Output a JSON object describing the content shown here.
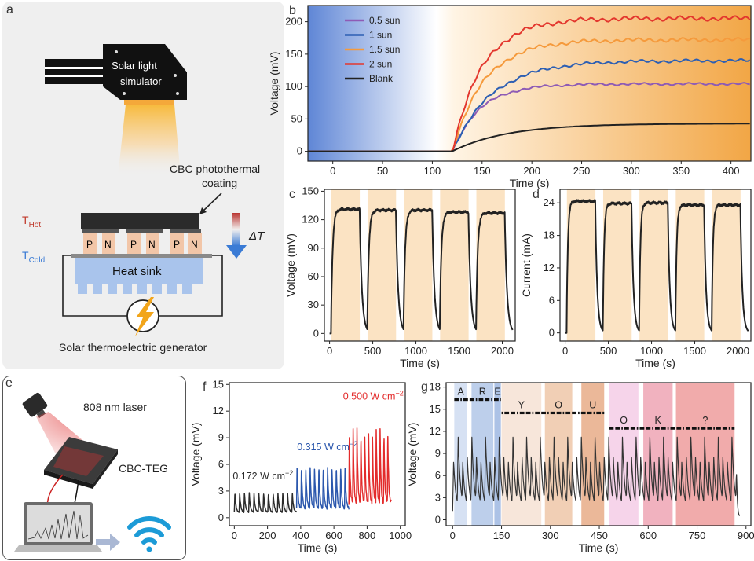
{
  "panel_a": {
    "letter": "a",
    "simulator_label_1": "Solar light",
    "simulator_label_2": "simulator",
    "coating_label_1": "CBC photothermal",
    "coating_label_2": "coating",
    "t_hot": "T",
    "t_hot_sub": "Hot",
    "t_cold": "T",
    "t_cold_sub": "Cold",
    "delta_t": "ΔT",
    "p_label": "P",
    "n_label": "N",
    "heat_sink": "Heat sink",
    "generator_label": "Solar thermoelectric generator",
    "colors": {
      "hot": "#c0392b",
      "cold": "#3a7bd5",
      "coating": "#2b2b2b",
      "sink": "#a9c4ec",
      "leg": "#f2c6a8",
      "bolt": "#f2a51a"
    }
  },
  "panel_e": {
    "letter": "e",
    "laser_label": "808 nm laser",
    "device_label": "CBC-TEG",
    "icons": [
      "laser-head-icon",
      "teg-device-icon",
      "laptop-icon",
      "arrow-right-icon",
      "wifi-icon"
    ],
    "colors": {
      "laser": "#e03a3a",
      "wifi": "#1c9bd7"
    }
  },
  "chart_data": [
    {
      "id": "b",
      "letter": "b",
      "type": "line",
      "title": "",
      "xlabel": "Time (s)",
      "ylabel": "Voltage (mV)",
      "xlim": [
        -25,
        420
      ],
      "ylim": [
        -15,
        225
      ],
      "xticks": [
        0,
        50,
        100,
        150,
        200,
        250,
        300,
        350,
        400
      ],
      "yticks": [
        0,
        50,
        100,
        150,
        200
      ],
      "light_on_at": 120,
      "legend_position": "top-left",
      "series": [
        {
          "name": "0.5 sun",
          "color": "#8e5bb5",
          "plateau": 104,
          "tau": 28
        },
        {
          "name": "1 sun",
          "color": "#2d5fb3",
          "plateau": 140,
          "tau": 40
        },
        {
          "name": "1.5 sun",
          "color": "#f59a3c",
          "plateau": 172,
          "tau": 32
        },
        {
          "name": "2 sun",
          "color": "#e3372e",
          "plateau": 205,
          "tau": 30
        },
        {
          "name": "Blank",
          "color": "#222222",
          "plateau": 43,
          "tau": 55
        }
      ]
    },
    {
      "id": "c",
      "letter": "c",
      "type": "line",
      "xlabel": "Time (s)",
      "ylabel": "Voltage (mV)",
      "xlim": [
        -60,
        2150
      ],
      "ylim": [
        -8,
        152
      ],
      "xticks": [
        0,
        500,
        1000,
        1500,
        2000
      ],
      "yticks": [
        0,
        30,
        60,
        90,
        120,
        150
      ],
      "on_windows": [
        [
          20,
          350
        ],
        [
          440,
          770
        ],
        [
          860,
          1190
        ],
        [
          1280,
          1610
        ],
        [
          1700,
          2030
        ]
      ],
      "peaks": [
        131,
        130,
        130,
        128,
        127
      ],
      "color": "#222222",
      "band_color": "#fbe3c3"
    },
    {
      "id": "d",
      "letter": "d",
      "type": "line",
      "xlabel": "Time (s)",
      "ylabel": "Current (mA)",
      "xlim": [
        -60,
        2150
      ],
      "ylim": [
        -1.5,
        26.5
      ],
      "xticks": [
        0,
        500,
        1000,
        1500,
        2000
      ],
      "yticks": [
        0,
        6,
        12,
        18,
        24
      ],
      "on_windows": [
        [
          20,
          350
        ],
        [
          440,
          770
        ],
        [
          860,
          1190
        ],
        [
          1280,
          1610
        ],
        [
          1700,
          2030
        ]
      ],
      "peaks": [
        24.3,
        23.9,
        24.0,
        23.6,
        23.6
      ],
      "color": "#222222",
      "band_color": "#fbe3c3"
    },
    {
      "id": "f",
      "letter": "f",
      "type": "line",
      "xlabel": "Time (s)",
      "ylabel": "Voltage (mV)",
      "xlim": [
        -30,
        1030
      ],
      "ylim": [
        -0.9,
        15.2
      ],
      "xticks": [
        0,
        200,
        400,
        600,
        800,
        1000
      ],
      "yticks": [
        0,
        3,
        6,
        9,
        12,
        15
      ],
      "segments": [
        {
          "label": "0.172 W cm",
          "sup": "−2",
          "color": "#2b2b2b",
          "start": 0,
          "end": 375,
          "cycles": 13,
          "low": 0.6,
          "high": 2.8
        },
        {
          "label": "0.315 W cm",
          "sup": "−2",
          "color": "#2b57ad",
          "start": 375,
          "end": 690,
          "cycles": 12,
          "low": 1.0,
          "high": 5.7
        },
        {
          "label": "0.500 W cm",
          "sup": "−2",
          "color": "#e32b2b",
          "start": 690,
          "end": 945,
          "cycles": 11,
          "low": 1.6,
          "high": 9.9
        }
      ]
    },
    {
      "id": "g",
      "letter": "g",
      "type": "line",
      "xlabel": "Time (s)",
      "ylabel": "Voltage (mV)",
      "xlim": [
        -20,
        915
      ],
      "ylim": [
        -0.8,
        18.6
      ],
      "xticks": [
        0,
        150,
        300,
        450,
        600,
        750,
        900
      ],
      "yticks": [
        0,
        3,
        6,
        9,
        12,
        15,
        18
      ],
      "bands": [
        {
          "start": 5,
          "end": 45,
          "color": "#cfdcf1",
          "letter": "A"
        },
        {
          "start": 58,
          "end": 125,
          "color": "#b2c7e8",
          "letter": "R"
        },
        {
          "start": 128,
          "end": 148,
          "color": "#9db7e2",
          "letter": "E"
        },
        {
          "start": 150,
          "end": 272,
          "color": "#f6e2d3",
          "letter": "Y"
        },
        {
          "start": 283,
          "end": 367,
          "color": "#efc7a8",
          "letter": "O"
        },
        {
          "start": 395,
          "end": 465,
          "color": "#e7ab87",
          "letter": "U"
        },
        {
          "start": 480,
          "end": 570,
          "color": "#f5cde6",
          "letter": "O"
        },
        {
          "start": 585,
          "end": 675,
          "color": "#efa5b4",
          "letter": "K"
        },
        {
          "start": 685,
          "end": 865,
          "color": "#ef9c9c",
          "letter": "?"
        }
      ],
      "morse_rows": [
        {
          "y": 16.3,
          "from": 5,
          "to": 148
        },
        {
          "y": 14.5,
          "from": 150,
          "to": 465
        },
        {
          "y": 12.4,
          "from": 480,
          "to": 865
        }
      ],
      "color": "#333333"
    }
  ]
}
